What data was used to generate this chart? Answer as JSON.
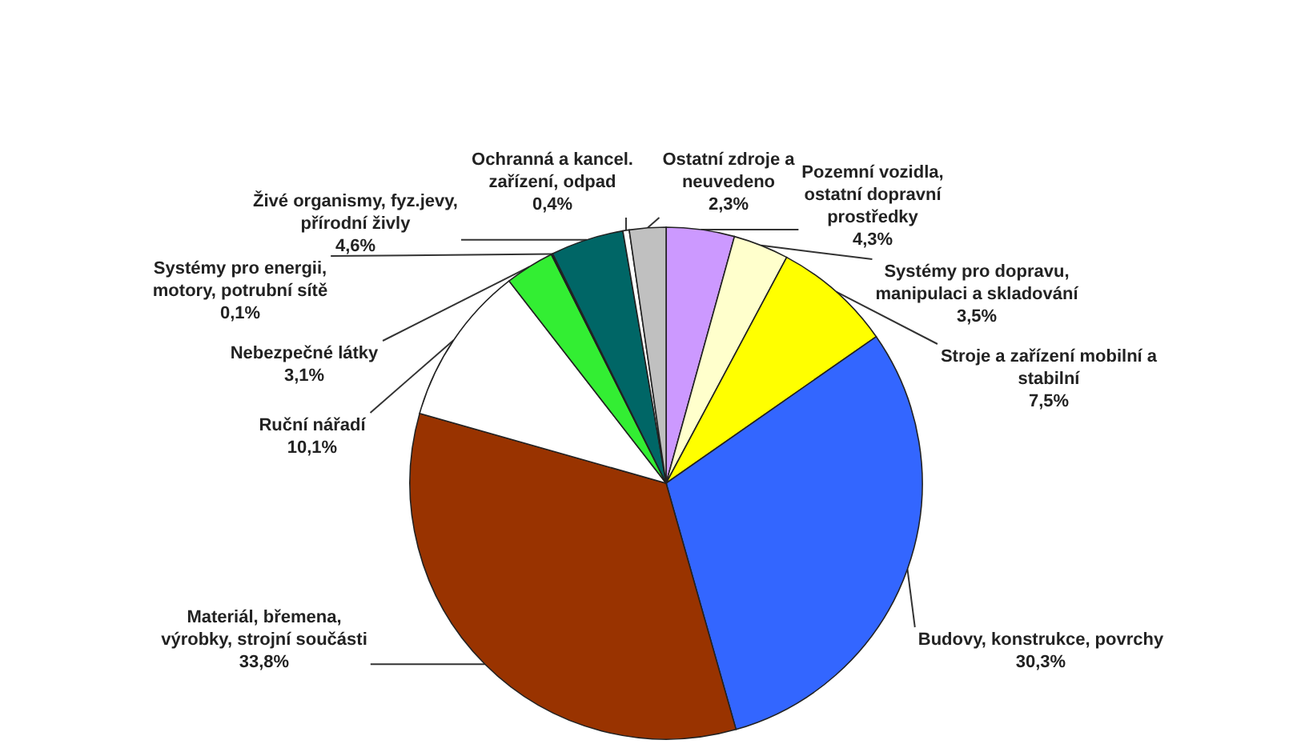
{
  "chart_data": {
    "type": "pie",
    "categories": [
      "Pozemní vozidla, ostatní dopravní prostředky",
      "Systémy pro dopravu, manipulaci a skladování",
      "Stroje a zařízení mobilní a stabilní",
      "Budovy, konstrukce, povrchy",
      "Materiál, břemena, výrobky, strojní součásti",
      "Ruční nářadí",
      "Nebezpečné látky",
      "Systémy pro energii, motory, potrubní sítě",
      "Živé organismy, fyz.jevy, přírodní živly",
      "Ochranná a kancel. zařízení, odpad",
      "Ostatní zdroje a neuvedeno"
    ],
    "values": [
      4.3,
      3.5,
      7.5,
      30.3,
      33.8,
      10.1,
      3.1,
      0.1,
      4.6,
      0.4,
      2.3
    ],
    "value_labels": [
      "4,3%",
      "3,5%",
      "7,5%",
      "30,3%",
      "33,8%",
      "10,1%",
      "3,1%",
      "0,1%",
      "4,6%",
      "0,4%",
      "2,3%"
    ],
    "colors": [
      "#cc99ff",
      "#ffffcc",
      "#ffff00",
      "#3366ff",
      "#993300",
      "#ffffff",
      "#33ee33",
      "#003333",
      "#006666",
      "#ffffff",
      "#c0c0c0"
    ]
  }
}
